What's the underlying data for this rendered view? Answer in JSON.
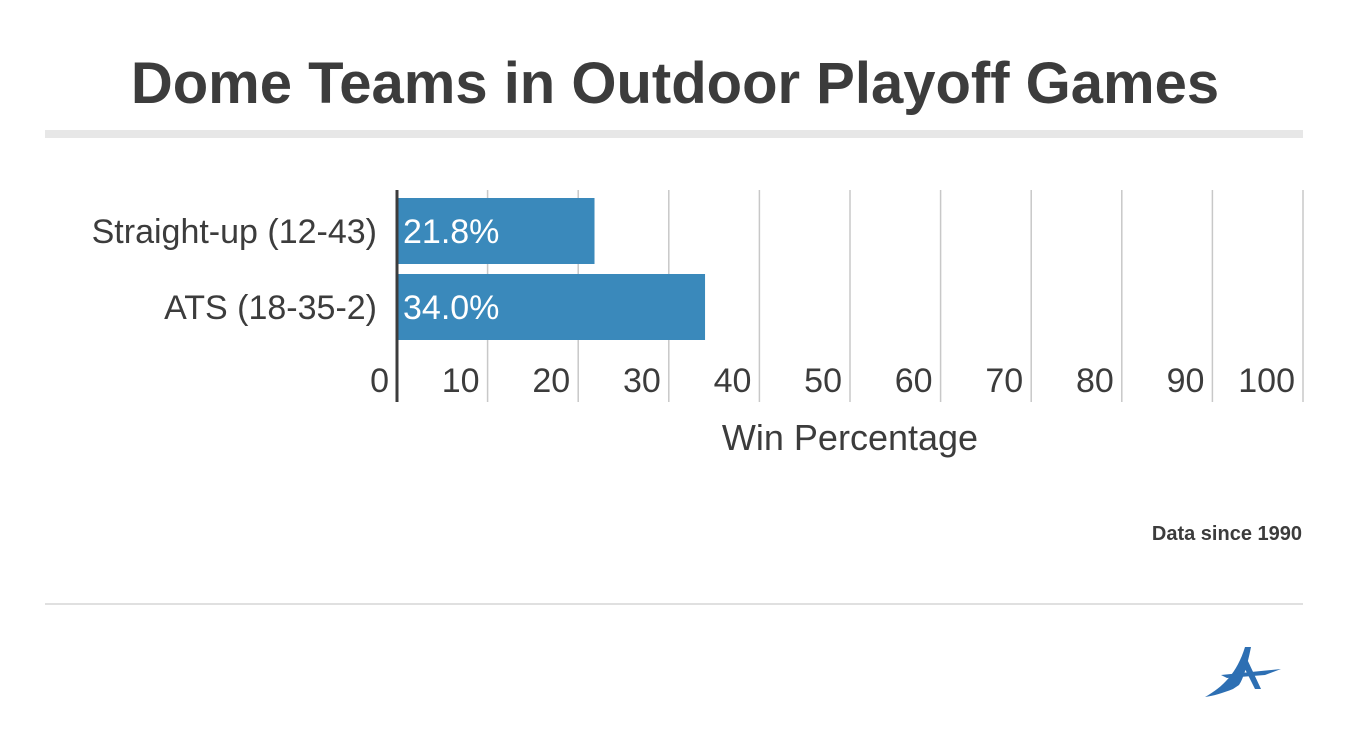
{
  "title": "Dome Teams in Outdoor Playoff Games",
  "footnote": "Data since 1990",
  "logo": {
    "icon": "arrow-a-logo-icon",
    "color": "#2d6fb3"
  },
  "colors": {
    "bar": "#3a89bb",
    "text": "#3c3c3c",
    "grid": "#c8c8c8",
    "axis": "#3c3c3c",
    "rule": "#e7e7e7"
  },
  "chart_data": {
    "type": "bar",
    "orientation": "horizontal",
    "categories": [
      "Straight-up (12-43)",
      "ATS (18-35-2)"
    ],
    "values": [
      21.8,
      34.0
    ],
    "data_labels": [
      "21.8%",
      "34.0%"
    ],
    "xlabel": "Win Percentage",
    "ylabel": "",
    "xlim": [
      0,
      100
    ],
    "xticks": [
      0,
      10,
      20,
      30,
      40,
      50,
      60,
      70,
      80,
      90,
      100
    ],
    "grid": true,
    "legend": "none"
  }
}
